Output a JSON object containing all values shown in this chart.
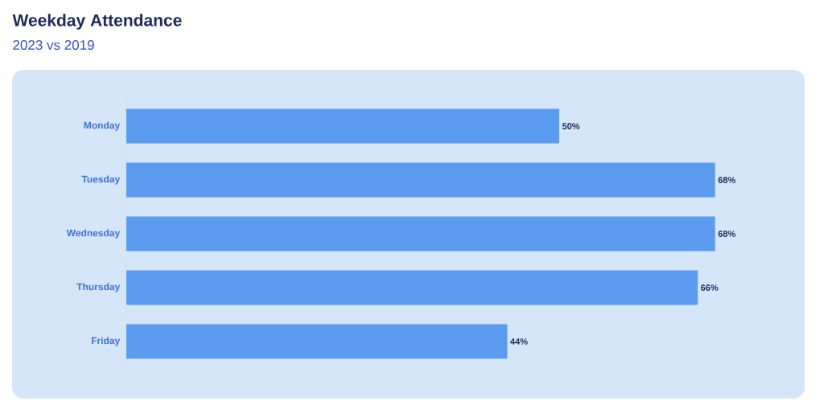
{
  "chart_data": {
    "type": "bar",
    "orientation": "horizontal",
    "title": "Weekday Attendance",
    "subtitle": "2023 vs 2019",
    "categories": [
      "Monday",
      "Tuesday",
      "Wednesday",
      "Thursday",
      "Friday"
    ],
    "values": [
      50,
      68,
      68,
      66,
      44
    ],
    "value_labels": [
      "50%",
      "68%",
      "68%",
      "66%",
      "44%"
    ],
    "color": "#5b9cf0"
  }
}
